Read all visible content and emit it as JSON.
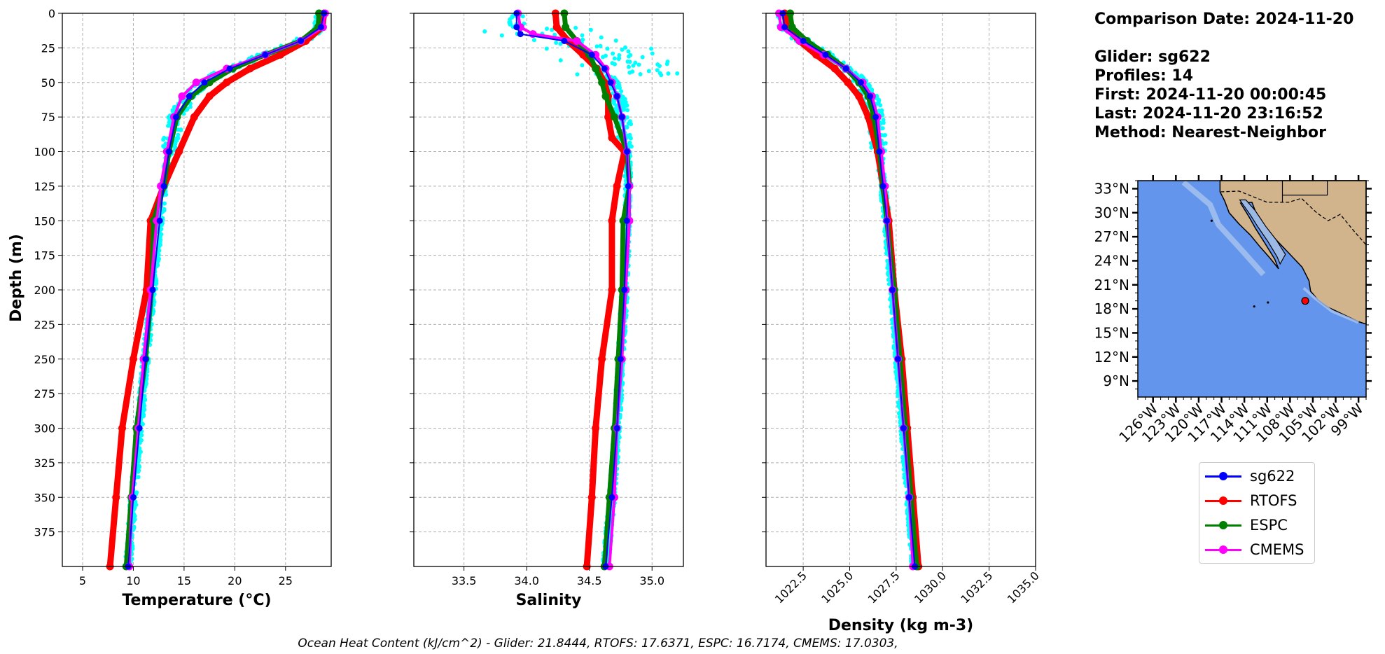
{
  "colors": {
    "sg622": "#0000ff",
    "RTOFS": "#ff0000",
    "ESPC": "#008000",
    "CMEMS": "#ff00ff",
    "glider_scatter": "#00ffff",
    "ocean": "#6495ed",
    "land": "#d2b48c"
  },
  "info": {
    "comparison_date": "Comparison Date: 2024-11-20",
    "glider": "Glider: sg622",
    "profiles": "Profiles: 14",
    "first": "First: 2024-11-20 00:00:45",
    "last": "Last: 2024-11-20 23:16:52",
    "method": "Method: Nearest-Neighbor"
  },
  "footer": "Ocean Heat Content (kJ/cm^2) - Glider: 21.8444,  RTOFS: 17.6371,  ESPC: 16.7174,  CMEMS: 17.0303,",
  "legend": [
    "sg622",
    "RTOFS",
    "ESPC",
    "CMEMS"
  ],
  "chart_data": [
    {
      "type": "line",
      "xlabel": "Temperature (°C)",
      "ylabel": "Depth (m)",
      "xlim": [
        3,
        29.5
      ],
      "ylim": [
        400,
        0
      ],
      "xticks": [
        5,
        10,
        15,
        20,
        25
      ],
      "yticks": [
        0,
        25,
        50,
        75,
        100,
        125,
        150,
        175,
        200,
        225,
        250,
        275,
        300,
        325,
        350,
        375
      ],
      "grid": true,
      "series": [
        {
          "name": "sg622",
          "depth": [
            0,
            10,
            20,
            30,
            40,
            50,
            60,
            75,
            100,
            125,
            150,
            200,
            250,
            300,
            350,
            400
          ],
          "values": [
            28.8,
            28.5,
            26.5,
            23,
            19.5,
            17,
            15.5,
            14.2,
            13.5,
            13,
            12.6,
            11.9,
            11.2,
            10.6,
            10,
            9.5
          ]
        },
        {
          "name": "RTOFS",
          "depth": [
            0,
            10,
            20,
            30,
            40,
            50,
            60,
            75,
            100,
            125,
            150,
            200,
            250,
            300,
            350,
            400
          ],
          "values": [
            28.8,
            28.6,
            27,
            24.5,
            21.5,
            19.2,
            17.5,
            16,
            14.5,
            13,
            11.7,
            11.3,
            10,
            8.9,
            8.3,
            7.7
          ]
        },
        {
          "name": "ESPC",
          "depth": [
            0,
            10,
            20,
            30,
            40,
            50,
            60,
            75,
            100,
            125,
            150,
            200,
            250,
            300,
            350,
            400
          ],
          "values": [
            28.3,
            28.2,
            26.5,
            23,
            19.8,
            17.5,
            15.7,
            14.3,
            13.5,
            13,
            12,
            11.8,
            11.2,
            10.3,
            9.8,
            9.3
          ]
        },
        {
          "name": "CMEMS",
          "depth": [
            0,
            10,
            20,
            30,
            40,
            50,
            60,
            75,
            100,
            125,
            150,
            200,
            250,
            300,
            350,
            400
          ],
          "values": [
            28.9,
            28.7,
            26.5,
            23,
            19.2,
            16.2,
            14.8,
            14,
            13.3,
            12.7,
            12.3,
            11.7,
            11,
            10.5,
            9.9,
            9.6
          ]
        }
      ]
    },
    {
      "type": "line",
      "xlabel": "Salinity",
      "xlim": [
        33.1,
        35.25
      ],
      "ylim": [
        400,
        0
      ],
      "xticks": [
        33.5,
        34.0,
        34.5,
        35.0
      ],
      "grid": true,
      "series": [
        {
          "name": "sg622",
          "depth": [
            0,
            10,
            15,
            20,
            30,
            40,
            50,
            60,
            75,
            100,
            125,
            150,
            200,
            250,
            300,
            350,
            400
          ],
          "values": [
            33.92,
            33.92,
            33.95,
            34.3,
            34.52,
            34.62,
            34.67,
            34.72,
            34.76,
            34.8,
            34.81,
            34.8,
            34.78,
            34.75,
            34.72,
            34.68,
            34.63
          ]
        },
        {
          "name": "RTOFS",
          "depth": [
            0,
            10,
            20,
            30,
            40,
            50,
            60,
            75,
            90,
            100,
            125,
            150,
            200,
            250,
            300,
            350,
            400
          ],
          "values": [
            34.23,
            34.24,
            34.33,
            34.45,
            34.56,
            34.62,
            34.65,
            34.65,
            34.68,
            34.78,
            34.72,
            34.68,
            34.68,
            34.6,
            34.55,
            34.52,
            34.48
          ]
        },
        {
          "name": "ESPC",
          "depth": [
            0,
            10,
            20,
            30,
            40,
            50,
            60,
            75,
            100,
            125,
            150,
            200,
            250,
            300,
            350,
            400
          ],
          "values": [
            34.3,
            34.31,
            34.4,
            34.5,
            34.55,
            34.6,
            34.63,
            34.7,
            34.8,
            34.82,
            34.77,
            34.76,
            34.73,
            34.7,
            34.66,
            34.62
          ]
        },
        {
          "name": "CMEMS",
          "depth": [
            0,
            10,
            15,
            20,
            30,
            40,
            50,
            60,
            75,
            100,
            125,
            150,
            200,
            250,
            300,
            350,
            400
          ],
          "values": [
            33.93,
            33.95,
            34.05,
            34.4,
            34.55,
            34.63,
            34.68,
            34.72,
            34.76,
            34.8,
            34.82,
            34.82,
            34.79,
            34.76,
            34.72,
            34.7,
            34.66
          ]
        }
      ]
    },
    {
      "type": "line",
      "xlabel": "Density (kg m-3)",
      "xlim": [
        1020.5,
        1035
      ],
      "ylim": [
        400,
        0
      ],
      "xticks": [
        1022.5,
        1025.0,
        1027.5,
        1030.0,
        1032.5,
        1035.0
      ],
      "grid": true,
      "series": [
        {
          "name": "sg622",
          "depth": [
            0,
            10,
            20,
            30,
            40,
            50,
            60,
            75,
            100,
            125,
            150,
            200,
            250,
            300,
            350,
            400
          ],
          "values": [
            1021.4,
            1021.5,
            1022.5,
            1023.7,
            1024.8,
            1025.6,
            1026.1,
            1026.4,
            1026.6,
            1026.8,
            1027.0,
            1027.3,
            1027.6,
            1027.9,
            1028.2,
            1028.5
          ]
        },
        {
          "name": "RTOFS",
          "depth": [
            0,
            10,
            20,
            30,
            40,
            50,
            60,
            75,
            100,
            125,
            150,
            200,
            250,
            300,
            350,
            400
          ],
          "values": [
            1021.5,
            1021.6,
            1022.3,
            1023.2,
            1024.2,
            1024.9,
            1025.5,
            1026.0,
            1026.5,
            1026.8,
            1027.1,
            1027.4,
            1027.8,
            1028.1,
            1028.4,
            1028.7
          ]
        },
        {
          "name": "ESPC",
          "depth": [
            0,
            10,
            20,
            30,
            40,
            50,
            60,
            75,
            100,
            125,
            150,
            200,
            250,
            300,
            350,
            400
          ],
          "values": [
            1021.8,
            1021.9,
            1022.7,
            1023.8,
            1024.8,
            1025.5,
            1026.0,
            1026.3,
            1026.6,
            1026.8,
            1027.0,
            1027.4,
            1027.7,
            1028.0,
            1028.3,
            1028.6
          ]
        },
        {
          "name": "CMEMS",
          "depth": [
            0,
            10,
            20,
            30,
            40,
            50,
            60,
            75,
            100,
            125,
            150,
            200,
            250,
            300,
            350,
            400
          ],
          "values": [
            1021.2,
            1021.3,
            1022.3,
            1023.6,
            1024.8,
            1025.7,
            1026.2,
            1026.5,
            1026.7,
            1026.9,
            1027.0,
            1027.3,
            1027.6,
            1027.9,
            1028.2,
            1028.4
          ]
        }
      ]
    },
    {
      "type": "map",
      "lat_labels": [
        "33°N",
        "30°N",
        "27°N",
        "24°N",
        "21°N",
        "18°N",
        "15°N",
        "12°N",
        "9°N"
      ],
      "lon_labels": [
        "126°W",
        "123°W",
        "120°W",
        "117°W",
        "114°W",
        "111°W",
        "108°W",
        "105°W",
        "102°W",
        "99°W"
      ],
      "lat_range": [
        7,
        34
      ],
      "lon_range": [
        -128,
        -98
      ],
      "marker": {
        "lat": 19,
        "lon": -106
      }
    }
  ]
}
